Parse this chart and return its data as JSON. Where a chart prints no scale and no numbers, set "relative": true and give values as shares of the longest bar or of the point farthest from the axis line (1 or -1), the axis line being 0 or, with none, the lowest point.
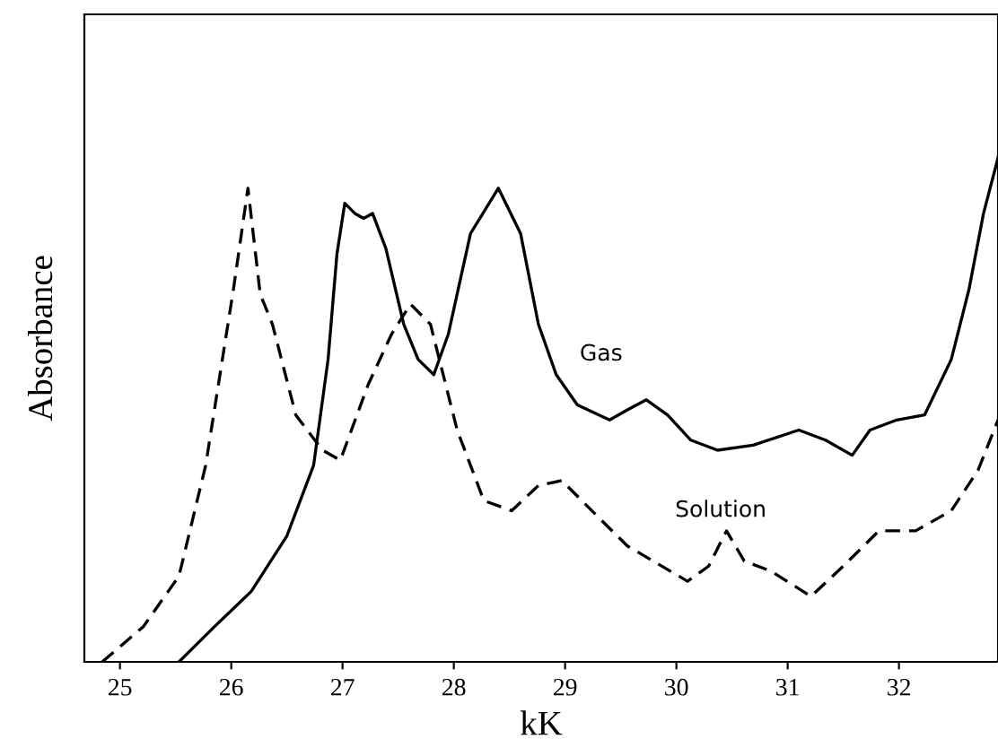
{
  "chart_data": {
    "type": "line",
    "xlabel": "kK",
    "ylabel": "Absorbance",
    "relative": true,
    "xlim": [
      24.68,
      32.89
    ],
    "xticks": [
      25,
      26,
      27,
      28,
      29,
      30,
      31,
      32
    ],
    "grid": false,
    "legend": false,
    "marker": "none",
    "series": [
      {
        "name": "Gas",
        "color": "#000000",
        "line_style": "solid",
        "x": [
          25.53,
          25.85,
          26.18,
          26.5,
          26.74,
          26.87,
          26.95,
          27.02,
          27.11,
          27.19,
          27.27,
          27.39,
          27.55,
          27.68,
          27.82,
          27.95,
          28.15,
          28.4,
          28.6,
          28.76,
          28.92,
          29.11,
          29.4,
          29.56,
          29.73,
          29.92,
          30.13,
          30.37,
          30.69,
          31.1,
          31.34,
          31.58,
          31.74,
          31.98,
          32.23,
          32.47,
          32.63,
          32.76,
          32.89
        ],
        "values": [
          0,
          0.07,
          0.14,
          0.25,
          0.39,
          0.6,
          0.81,
          0.91,
          0.89,
          0.88,
          0.89,
          0.82,
          0.67,
          0.6,
          0.57,
          0.65,
          0.85,
          0.94,
          0.85,
          0.67,
          0.57,
          0.51,
          0.48,
          0.5,
          0.52,
          0.49,
          0.44,
          0.42,
          0.43,
          0.46,
          0.44,
          0.41,
          0.46,
          0.48,
          0.49,
          0.6,
          0.74,
          0.89,
          1.0
        ]
      },
      {
        "name": "Solution",
        "color": "#000000",
        "line_style": "dashed",
        "x": [
          24.84,
          25.21,
          25.53,
          25.77,
          26.02,
          26.15,
          26.26,
          26.37,
          26.58,
          26.82,
          26.98,
          27.23,
          27.44,
          27.61,
          27.79,
          28.03,
          28.27,
          28.52,
          28.76,
          28.97,
          29.24,
          29.56,
          30.1,
          30.29,
          30.45,
          30.61,
          30.85,
          31.21,
          31.5,
          31.82,
          32.15,
          32.47,
          32.71,
          32.89
        ],
        "values": [
          0,
          0.07,
          0.17,
          0.39,
          0.74,
          0.94,
          0.73,
          0.67,
          0.49,
          0.42,
          0.4,
          0.55,
          0.65,
          0.71,
          0.67,
          0.46,
          0.32,
          0.3,
          0.35,
          0.36,
          0.3,
          0.23,
          0.16,
          0.19,
          0.26,
          0.2,
          0.18,
          0.13,
          0.19,
          0.26,
          0.26,
          0.3,
          0.38,
          0.48
        ]
      }
    ]
  }
}
